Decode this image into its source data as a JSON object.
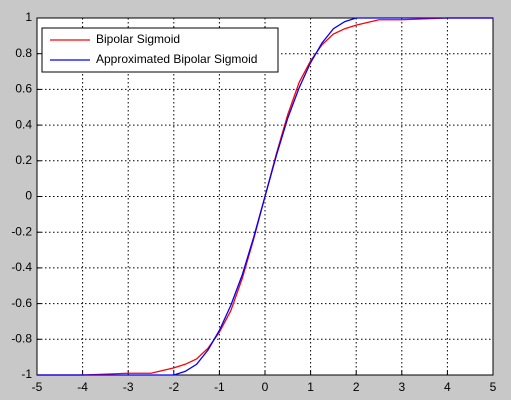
{
  "chart_data": {
    "type": "line",
    "x": [
      -5,
      -4,
      -3,
      -2.5,
      -2,
      -1.75,
      -1.5,
      -1.25,
      -1,
      -0.75,
      -0.5,
      -0.25,
      0,
      0.25,
      0.5,
      0.75,
      1,
      1.25,
      1.5,
      1.75,
      2,
      2.5,
      3,
      4,
      5
    ],
    "series": [
      {
        "name": "Bipolar Sigmoid",
        "color": "#ff0000",
        "values": [
          -1,
          -1,
          -0.99,
          -0.99,
          -0.96,
          -0.94,
          -0.91,
          -0.85,
          -0.76,
          -0.64,
          -0.46,
          -0.24,
          0,
          0.24,
          0.46,
          0.64,
          0.76,
          0.85,
          0.91,
          0.94,
          0.96,
          0.99,
          0.99,
          1,
          1
        ]
      },
      {
        "name": "Approximated Bipolar Sigmoid",
        "color": "#0000ff",
        "values": [
          -1,
          -1,
          -1,
          -1,
          -1,
          -0.98,
          -0.94,
          -0.86,
          -0.75,
          -0.61,
          -0.44,
          -0.23,
          0,
          0.23,
          0.44,
          0.61,
          0.75,
          0.86,
          0.94,
          0.98,
          1,
          1,
          1,
          1,
          1
        ]
      }
    ],
    "xlim": [
      -5,
      5
    ],
    "xticks": [
      -5,
      -4,
      -3,
      -2,
      -1,
      0,
      1,
      2,
      3,
      4,
      5
    ],
    "ylim": [
      -1,
      1
    ],
    "yticks": [
      -1,
      -0.8,
      -0.6,
      -0.4,
      -0.2,
      0,
      0.2,
      0.4,
      0.6,
      0.8,
      1
    ],
    "grid": true,
    "legend": "upper left"
  }
}
